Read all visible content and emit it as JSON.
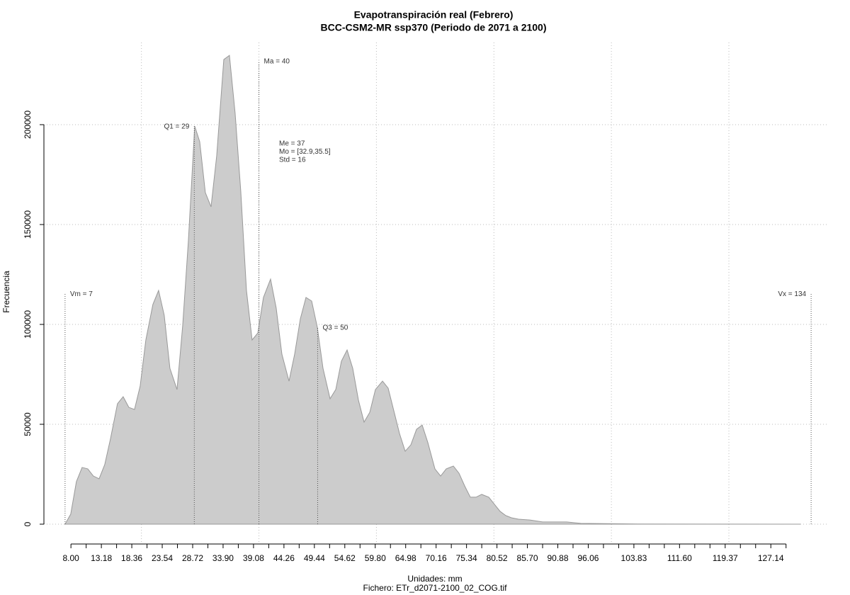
{
  "chart_data": {
    "type": "area",
    "title": "Evapotranspiración real (Febrero)",
    "subtitle": "BCC-CSM2-MR ssp370 (Periodo de 2071 a 2100)",
    "x_label": "Unidades: mm",
    "caption": "Fichero: ETr_d2071-2100_02_COG.tif",
    "y_label": "Frecuencia",
    "color": "#cccccc",
    "line_color": "#999999",
    "grid": true,
    "xlim": [
      3.4,
      137
    ],
    "ylim": [
      -9929,
      241135
    ],
    "yticks": [
      0,
      50000,
      100000,
      150000,
      200000
    ],
    "xgrid": [
      20,
      40,
      60,
      80,
      100,
      120
    ],
    "xticks": [
      {
        "value": 8.0,
        "label": "8.00"
      },
      {
        "value": 13.18,
        "label": "13.18"
      },
      {
        "value": 18.36,
        "label": "18.36"
      },
      {
        "value": 23.54,
        "label": "23.54"
      },
      {
        "value": 28.72,
        "label": "28.72"
      },
      {
        "value": 33.9,
        "label": "33.90"
      },
      {
        "value": 39.08,
        "label": "39.08"
      },
      {
        "value": 44.26,
        "label": "44.26"
      },
      {
        "value": 49.44,
        "label": "49.44"
      },
      {
        "value": 54.62,
        "label": "54.62"
      },
      {
        "value": 59.8,
        "label": "59.80"
      },
      {
        "value": 64.98,
        "label": "64.98"
      },
      {
        "value": 70.16,
        "label": "70.16"
      },
      {
        "value": 75.34,
        "label": "75.34"
      },
      {
        "value": 80.52,
        "label": "80.52"
      },
      {
        "value": 85.7,
        "label": "85.70"
      },
      {
        "value": 90.88,
        "label": "90.88"
      },
      {
        "value": 96.06,
        "label": "96.06"
      },
      {
        "value": 103.83,
        "label": "103.83"
      },
      {
        "value": 111.6,
        "label": "111.60"
      },
      {
        "value": 119.37,
        "label": "119.37"
      },
      {
        "value": 127.14,
        "label": "127.14"
      }
    ],
    "xminorticks": [
      10.59,
      15.77,
      20.95,
      26.13,
      31.31,
      36.49,
      41.67,
      46.85,
      52.03,
      57.21,
      62.39,
      67.57,
      72.75,
      77.93,
      83.11,
      88.29,
      93.47,
      98.65,
      101.24,
      106.42,
      109.01,
      114.19,
      116.78,
      121.96,
      124.55,
      129.73
    ],
    "x": [
      7,
      7.96,
      8.93,
      9.9,
      10.86,
      11.82,
      12.79,
      13.75,
      14.72,
      15.92,
      16.89,
      17.85,
      18.82,
      19.78,
      20.75,
      21.95,
      22.92,
      23.88,
      24.85,
      26.06,
      27.02,
      27.99,
      29.07,
      29.92,
      30.88,
      31.85,
      32.81,
      34.02,
      34.98,
      35.95,
      36.91,
      37.88,
      38.84,
      39.81,
      40.77,
      41.98,
      42.94,
      43.91,
      45.12,
      46.08,
      47.05,
      48.01,
      48.98,
      49.94,
      50.91,
      52.11,
      53.08,
      54.04,
      55.01,
      55.97,
      56.94,
      57.9,
      58.87,
      59.83,
      61.04,
      62,
      62.97,
      63.93,
      64.9,
      65.86,
      66.83,
      67.79,
      68.76,
      69.96,
      70.93,
      71.89,
      73.1,
      74.06,
      75.03,
      75.99,
      76.96,
      77.92,
      79.13,
      80.1,
      81.06,
      82.03,
      82.99,
      84.2,
      86.13,
      88.3,
      92.4,
      94.8,
      100.4,
      104.5,
      116.5,
      132,
      132.2
    ],
    "values": [
      0,
      5000,
      21300,
      28400,
      27700,
      24100,
      22700,
      29800,
      42600,
      60300,
      63800,
      58500,
      57400,
      69100,
      92200,
      110000,
      117000,
      104600,
      78000,
      67400,
      99300,
      141800,
      199300,
      191500,
      166000,
      158900,
      184400,
      232600,
      234700,
      205700,
      166700,
      117000,
      92200,
      95700,
      113500,
      122700,
      108200,
      85100,
      71600,
      85100,
      102800,
      113500,
      111700,
      98600,
      78000,
      62800,
      67400,
      81600,
      87200,
      78000,
      62100,
      51100,
      56000,
      67400,
      71600,
      68100,
      56700,
      45400,
      36500,
      39700,
      47500,
      49600,
      40800,
      27700,
      24100,
      27700,
      29100,
      25500,
      19100,
      13500,
      13500,
      14900,
      13500,
      9900,
      6400,
      4300,
      3200,
      2500,
      2100,
      1100,
      1100,
      400,
      200,
      100,
      50,
      20,
      0
    ],
    "markers": [
      {
        "x": 7,
        "top": 115500,
        "label": "Vm = 7",
        "side": "right"
      },
      {
        "x": 29,
        "top": 199300,
        "label": "Q1 = 29",
        "side": "left"
      },
      {
        "x": 40,
        "top": 232000,
        "label": "Ma = 40",
        "side": "right"
      },
      {
        "x": 50,
        "top": 98600,
        "label": "Q3 = 50",
        "side": "right"
      },
      {
        "x": 134,
        "top": 115500,
        "label": "Vx = 134",
        "side": "left"
      }
    ],
    "stats": [
      "Me = 37",
      "Mo = [32.9,35.5]",
      "Std = 16"
    ]
  }
}
